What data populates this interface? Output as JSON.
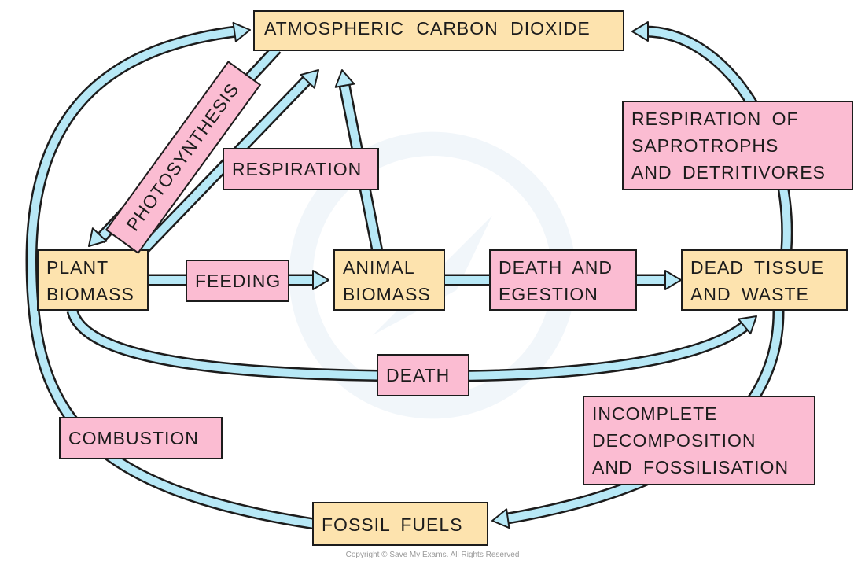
{
  "colors": {
    "store": "#fde3ae",
    "process": "#fbbcd2",
    "arrow": "#b7e8f6",
    "outline": "#1c1c1c"
  },
  "stores": {
    "atmosphere": "ATMOSPHERIC CARBON DIOXIDE",
    "plant": "PLANT\nBIOMASS",
    "animal": "ANIMAL\nBIOMASS",
    "dead": "DEAD TISSUE\nAND WASTE",
    "fossil": "FOSSIL FUELS"
  },
  "processes": {
    "photosynthesis": "PHOTOSYNTHESIS",
    "respiration": "RESPIRATION",
    "feeding": "FEEDING",
    "death_egestion": "DEATH AND\nEGESTION",
    "death": "DEATH",
    "decomposer_respiration": "RESPIRATION OF\nSAPROTROPHS\nAND DETRITIVORES",
    "incomplete_decomposition": "INCOMPLETE\nDECOMPOSITION\nAND FOSSILISATION",
    "combustion": "COMBUSTION"
  },
  "copyright": "Copyright © Save My Exams. All Rights Reserved"
}
